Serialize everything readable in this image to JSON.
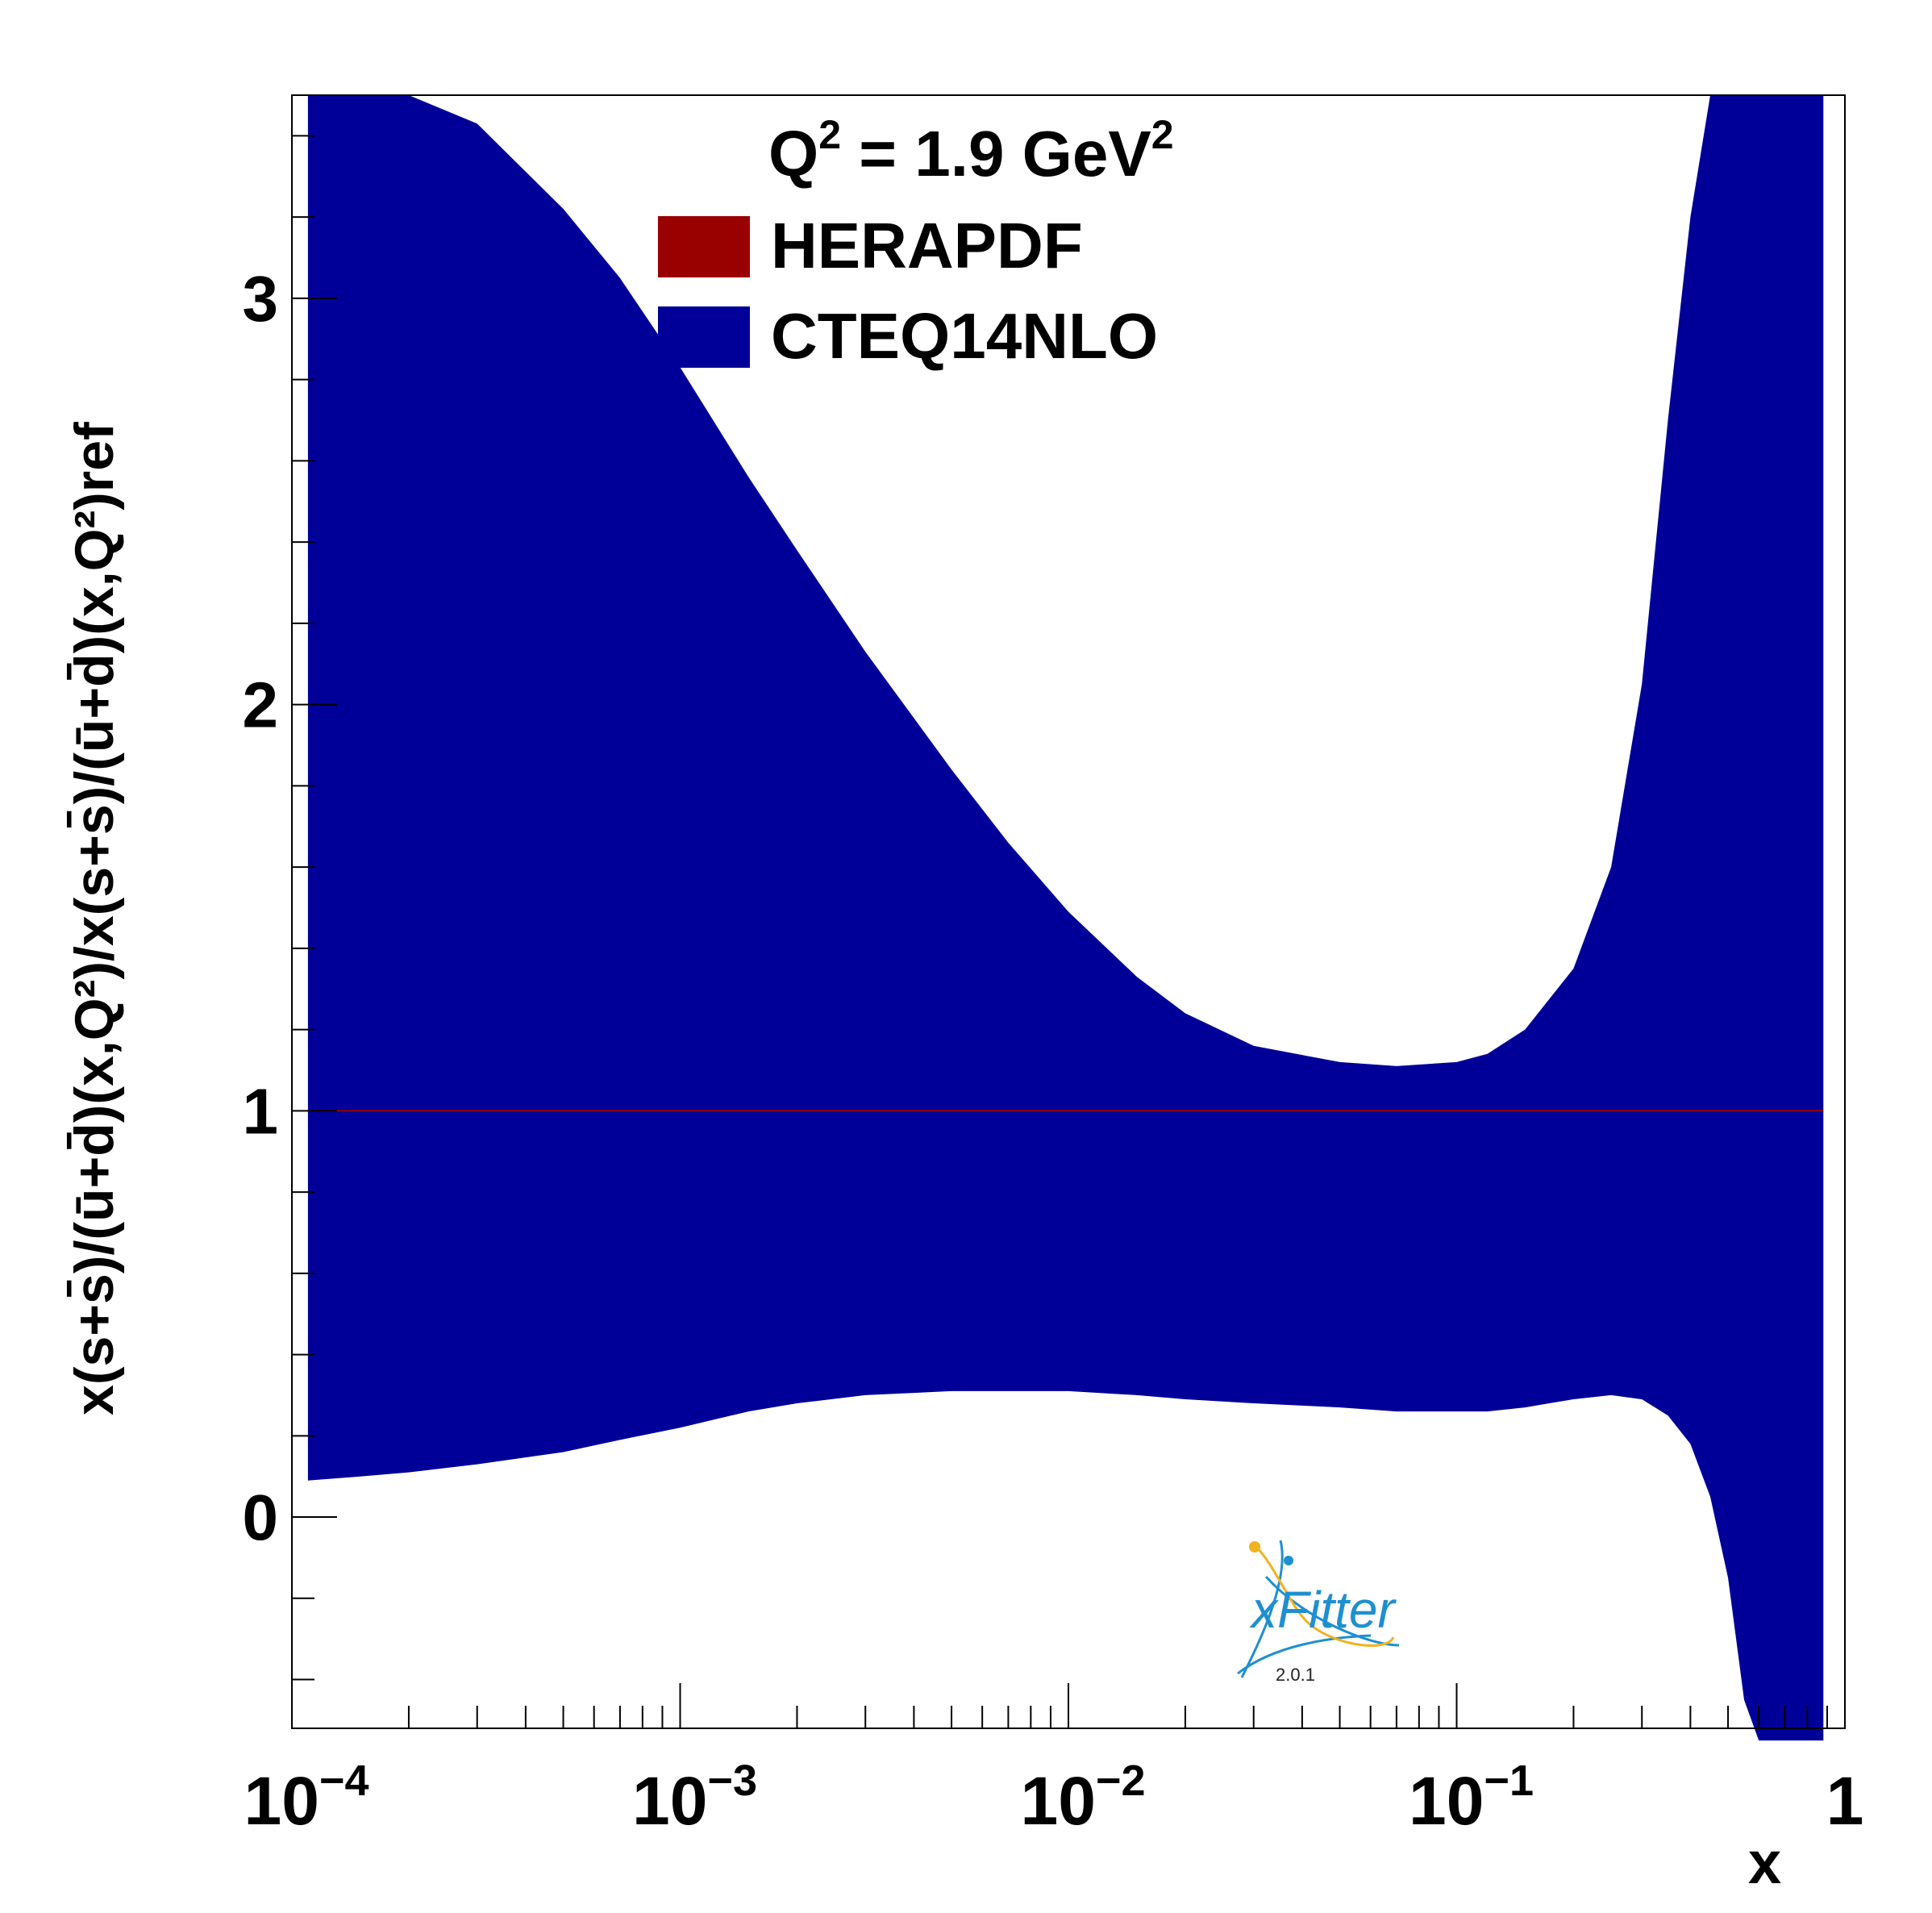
{
  "chart_data": {
    "type": "area",
    "title": "Q² = 1.9 GeV²",
    "title_parts": {
      "q": "Q",
      "q_exp": "2",
      "mid": " = 1.9 GeV",
      "gev_exp": "2"
    },
    "xlabel": "x",
    "ylabel": "x(s+s̄)/(ū+d̄)(x,Q²)/x(s+s̄)/(ū+d̄)(x,Q²)ref",
    "xscale": "log",
    "xlim": [
      0.0001,
      1
    ],
    "ylim": [
      -0.52,
      3.5
    ],
    "x_ticks": [
      {
        "base": "10",
        "exp": "−4"
      },
      {
        "base": "10",
        "exp": "−3"
      },
      {
        "base": "10",
        "exp": "−2"
      },
      {
        "base": "10",
        "exp": "−1"
      },
      {
        "base": "1",
        "exp": ""
      }
    ],
    "y_ticks": [
      "0",
      "1",
      "2",
      "3"
    ],
    "legend_position": "top-center",
    "series": [
      {
        "name": "HERAPDF",
        "color": "#990000",
        "x": [
          0.00011,
          0.001,
          0.01,
          0.1,
          0.88
        ],
        "central": [
          1,
          1,
          1,
          1,
          1
        ],
        "lower": [
          1,
          1,
          1,
          1,
          1
        ],
        "upper": [
          1,
          1,
          1,
          1,
          1
        ]
      },
      {
        "name": "CTEQ14NLO",
        "color": "#000099",
        "x": [
          0.00011,
          0.00015,
          0.0002,
          0.0003,
          0.0005,
          0.0007,
          0.001,
          0.0015,
          0.002,
          0.003,
          0.005,
          0.007,
          0.01,
          0.015,
          0.02,
          0.03,
          0.05,
          0.07,
          0.1,
          0.12,
          0.15,
          0.2,
          0.25,
          0.3,
          0.35,
          0.4,
          0.45,
          0.5,
          0.55,
          0.6,
          0.65,
          0.7,
          0.8,
          0.88
        ],
        "lower": [
          0.09,
          0.1,
          0.11,
          0.13,
          0.16,
          0.19,
          0.22,
          0.26,
          0.28,
          0.3,
          0.31,
          0.31,
          0.31,
          0.3,
          0.29,
          0.28,
          0.27,
          0.26,
          0.26,
          0.26,
          0.27,
          0.29,
          0.3,
          0.29,
          0.25,
          0.18,
          0.05,
          -0.15,
          -0.45,
          -0.55,
          -0.55,
          -0.55,
          -0.55,
          -0.55
        ],
        "upper": [
          3.5,
          3.5,
          3.5,
          3.43,
          3.22,
          3.05,
          2.83,
          2.56,
          2.38,
          2.13,
          1.84,
          1.66,
          1.49,
          1.33,
          1.24,
          1.16,
          1.12,
          1.11,
          1.12,
          1.14,
          1.2,
          1.35,
          1.6,
          2.05,
          2.7,
          3.2,
          3.5,
          3.5,
          3.5,
          3.5,
          3.5,
          3.5,
          3.5,
          3.5
        ]
      }
    ]
  },
  "logo": {
    "text": "xFitter",
    "version": "2.0.1"
  }
}
